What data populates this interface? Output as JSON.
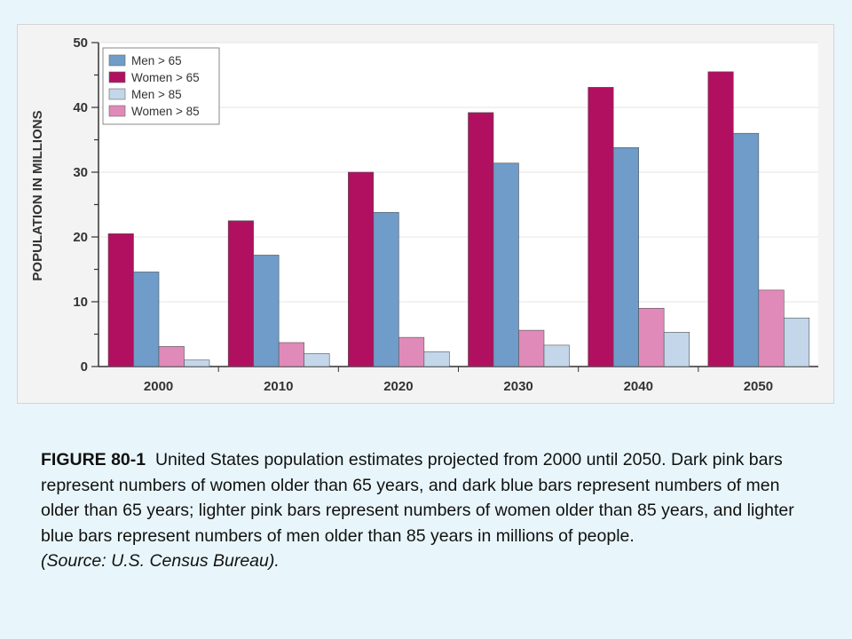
{
  "chart_data": {
    "type": "bar",
    "categories": [
      "2000",
      "2010",
      "2020",
      "2030",
      "2040",
      "2050"
    ],
    "series": [
      {
        "name": "Women > 65",
        "color": "#b0105f",
        "values": [
          20.5,
          22.5,
          30.0,
          39.2,
          43.1,
          45.5
        ]
      },
      {
        "name": "Men > 65",
        "color": "#6f9cc8",
        "values": [
          14.6,
          17.2,
          23.8,
          31.4,
          33.8,
          36.0
        ]
      },
      {
        "name": "Women > 85",
        "color": "#e08ab9",
        "values": [
          3.1,
          3.7,
          4.5,
          5.6,
          9.0,
          11.8
        ]
      },
      {
        "name": "Men > 85",
        "color": "#c3d6ea",
        "values": [
          1.0,
          2.0,
          2.3,
          3.3,
          5.3,
          7.5
        ]
      }
    ],
    "legend_order": [
      "Men > 65",
      "Women > 65",
      "Men > 85",
      "Women > 85"
    ],
    "legend_position": "top-left",
    "ylabel": "POPULATION IN MILLIONS",
    "xlabel": "",
    "ylim": [
      0,
      50
    ],
    "yticks": [
      0,
      10,
      20,
      30,
      40,
      50
    ],
    "grid": true
  },
  "caption": {
    "label": "FIGURE 80-1",
    "text": "United States population estimates projected from 2000 until 2050. Dark pink bars represent numbers of women older than 65 years, and dark blue bars represent numbers of men older than 65 years; lighter pink bars represent numbers of women older than 85 years, and lighter blue bars represent numbers of men older than 85 years in millions of people.",
    "source": "(Source: U.S. Census Bureau)."
  }
}
